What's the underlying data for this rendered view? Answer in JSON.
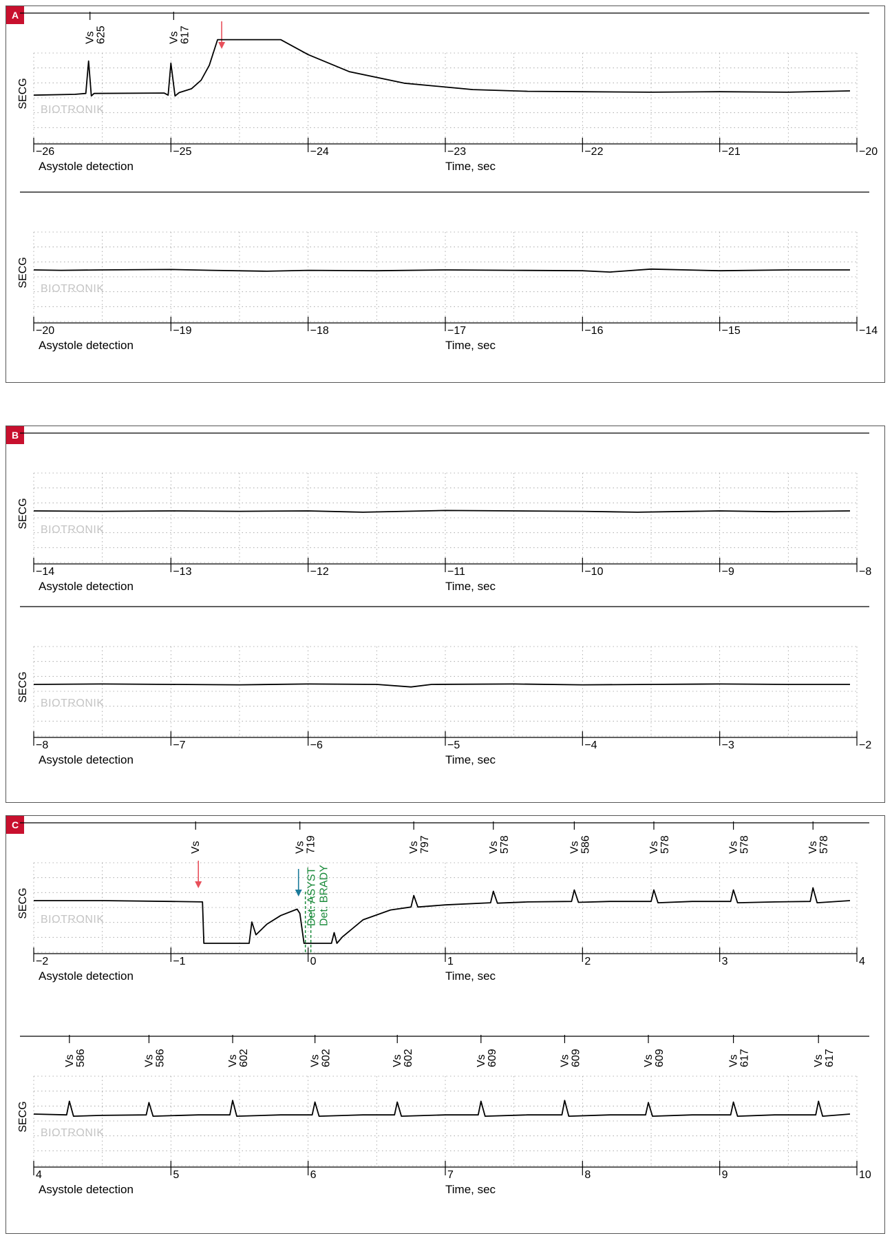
{
  "colors": {
    "label_bg": "#c8102e",
    "trace": "#000000",
    "grid": "#9a9a9a",
    "watermark": "#c4c4c4",
    "marker_red": "#e8505b",
    "marker_blue": "#1a7a9a",
    "marker_green": "#1a8a3a"
  },
  "watermark": "BIOTRONIK",
  "chart_data": [
    {
      "panel": "A",
      "type": "line",
      "ylabel": "SECG",
      "xlabel": "Time, sec",
      "footer_label": "Asystole detection",
      "xlim": [
        -26,
        -20
      ],
      "ticks": [
        "−26",
        "−25",
        "−24",
        "−23",
        "−22",
        "−21",
        "−20"
      ],
      "markers": [
        {
          "x": -25.59,
          "label": "Vs",
          "value": "625"
        },
        {
          "x": -24.98,
          "label": "Vs",
          "value": "617"
        }
      ],
      "arrows": [
        {
          "x": -24.63,
          "color": "red"
        }
      ],
      "green_lines": [],
      "trace": [
        [
          -26,
          -0.1
        ],
        [
          -25.7,
          -0.08
        ],
        [
          -25.62,
          -0.06
        ],
        [
          -25.6,
          0.7
        ],
        [
          -25.58,
          -0.12
        ],
        [
          -25.56,
          -0.06
        ],
        [
          -25.05,
          -0.05
        ],
        [
          -25.02,
          -0.1
        ],
        [
          -25.0,
          0.65
        ],
        [
          -24.97,
          -0.12
        ],
        [
          -24.94,
          -0.04
        ],
        [
          -24.85,
          0.05
        ],
        [
          -24.78,
          0.25
        ],
        [
          -24.72,
          0.6
        ],
        [
          -24.68,
          1.0
        ],
        [
          -24.66,
          1.2
        ],
        [
          -24.2,
          1.2
        ],
        [
          -24.0,
          0.85
        ],
        [
          -23.7,
          0.45
        ],
        [
          -23.3,
          0.18
        ],
        [
          -22.8,
          0.03
        ],
        [
          -22.4,
          -0.01
        ],
        [
          -22.0,
          -0.02
        ],
        [
          -21.5,
          -0.03
        ],
        [
          -21.0,
          -0.02
        ],
        [
          -20.5,
          -0.03
        ],
        [
          -20.05,
          0.0
        ]
      ]
    },
    {
      "panel": "A",
      "type": "line",
      "ylabel": "SECG",
      "xlabel": "Time, sec",
      "footer_label": "Asystole detection",
      "xlim": [
        -20,
        -14
      ],
      "ticks": [
        "−20",
        "−19",
        "−18",
        "−17",
        "−16",
        "−15",
        "−14"
      ],
      "markers": [],
      "arrows": [],
      "green_lines": [],
      "trace": [
        [
          -20,
          0.0
        ],
        [
          -19.8,
          -0.01
        ],
        [
          -19.5,
          0.0
        ],
        [
          -19.0,
          0.01
        ],
        [
          -18.7,
          -0.01
        ],
        [
          -18.3,
          -0.03
        ],
        [
          -18.0,
          -0.01
        ],
        [
          -17.5,
          -0.02
        ],
        [
          -17.0,
          0.0
        ],
        [
          -16.5,
          -0.01
        ],
        [
          -16.0,
          -0.02
        ],
        [
          -15.8,
          -0.05
        ],
        [
          -15.5,
          0.02
        ],
        [
          -15.0,
          -0.02
        ],
        [
          -14.5,
          0.0
        ],
        [
          -14.05,
          0.0
        ]
      ]
    },
    {
      "panel": "B",
      "type": "line",
      "ylabel": "SECG",
      "xlabel": "Time, sec",
      "footer_label": "Asystole detection",
      "xlim": [
        -14,
        -8
      ],
      "ticks": [
        "−14",
        "−13",
        "−12",
        "−11",
        "−10",
        "−9",
        "−8"
      ],
      "markers": [],
      "arrows": [],
      "green_lines": [],
      "trace": [
        [
          -14,
          0.0
        ],
        [
          -13.5,
          -0.01
        ],
        [
          -13.0,
          0.0
        ],
        [
          -12.5,
          -0.01
        ],
        [
          -12.0,
          0.0
        ],
        [
          -11.6,
          -0.03
        ],
        [
          -11.0,
          0.01
        ],
        [
          -10.5,
          0.0
        ],
        [
          -10.0,
          -0.01
        ],
        [
          -9.6,
          -0.03
        ],
        [
          -9.0,
          0.0
        ],
        [
          -8.6,
          -0.02
        ],
        [
          -8.05,
          0.0
        ]
      ]
    },
    {
      "panel": "B",
      "type": "line",
      "ylabel": "SECG",
      "xlabel": "Time, sec",
      "footer_label": "Asystole detection",
      "xlim": [
        -8,
        -2
      ],
      "ticks": [
        "−8",
        "−7",
        "−6",
        "−5",
        "−4",
        "−3",
        "−2"
      ],
      "markers": [],
      "arrows": [],
      "green_lines": [],
      "trace": [
        [
          -8,
          0.0
        ],
        [
          -7.5,
          0.01
        ],
        [
          -7.0,
          0.0
        ],
        [
          -6.5,
          -0.01
        ],
        [
          -6.0,
          0.01
        ],
        [
          -5.5,
          0.0
        ],
        [
          -5.25,
          -0.06
        ],
        [
          -5.1,
          0.0
        ],
        [
          -4.5,
          0.01
        ],
        [
          -4.0,
          -0.01
        ],
        [
          -3.5,
          0.0
        ],
        [
          -3.0,
          0.01
        ],
        [
          -2.5,
          0.0
        ],
        [
          -2.05,
          0.0
        ]
      ]
    },
    {
      "panel": "C",
      "type": "line",
      "ylabel": "SECG",
      "xlabel": "Time, sec",
      "footer_label": "Asystole detection",
      "xlim": [
        -2,
        4
      ],
      "ticks": [
        "−2",
        "−1",
        "0",
        "1",
        "2",
        "3",
        "4"
      ],
      "markers": [
        {
          "x": -0.82,
          "label": "Vs",
          "value": ""
        },
        {
          "x": -0.06,
          "label": "Vs",
          "value": "719"
        },
        {
          "x": 0.77,
          "label": "Vs",
          "value": "797"
        },
        {
          "x": 1.35,
          "label": "Vs",
          "value": "578"
        },
        {
          "x": 1.94,
          "label": "Vs",
          "value": "586"
        },
        {
          "x": 2.52,
          "label": "Vs",
          "value": "578"
        },
        {
          "x": 3.1,
          "label": "Vs",
          "value": "578"
        },
        {
          "x": 3.68,
          "label": "Vs",
          "value": "578"
        }
      ],
      "arrows": [
        {
          "x": -0.8,
          "color": "red"
        },
        {
          "x": -0.07,
          "color": "blue"
        }
      ],
      "green_lines": [
        {
          "x": -0.02,
          "label": "Det. ASYST"
        },
        {
          "x": 0.02,
          "label": "Det. BRADY"
        }
      ],
      "trace": [
        [
          -2,
          0.0
        ],
        [
          -1.5,
          0.0
        ],
        [
          -1.0,
          -0.02
        ],
        [
          -0.77,
          -0.03
        ],
        [
          -0.76,
          -1.0
        ],
        [
          -0.43,
          -1.0
        ],
        [
          -0.41,
          -0.5
        ],
        [
          -0.38,
          -0.8
        ],
        [
          -0.3,
          -0.55
        ],
        [
          -0.2,
          -0.35
        ],
        [
          -0.08,
          -0.2
        ],
        [
          -0.06,
          -0.3
        ],
        [
          -0.03,
          -1.0
        ],
        [
          0.17,
          -1.0
        ],
        [
          0.19,
          -0.75
        ],
        [
          0.21,
          -1.0
        ],
        [
          0.25,
          -0.85
        ],
        [
          0.4,
          -0.45
        ],
        [
          0.6,
          -0.22
        ],
        [
          0.75,
          -0.15
        ],
        [
          0.77,
          0.12
        ],
        [
          0.8,
          -0.15
        ],
        [
          1.0,
          -0.1
        ],
        [
          1.33,
          -0.05
        ],
        [
          1.35,
          0.22
        ],
        [
          1.38,
          -0.06
        ],
        [
          1.6,
          -0.03
        ],
        [
          1.92,
          -0.02
        ],
        [
          1.94,
          0.25
        ],
        [
          1.97,
          -0.04
        ],
        [
          2.2,
          -0.02
        ],
        [
          2.5,
          -0.02
        ],
        [
          2.52,
          0.25
        ],
        [
          2.55,
          -0.05
        ],
        [
          2.8,
          -0.02
        ],
        [
          3.08,
          -0.02
        ],
        [
          3.1,
          0.25
        ],
        [
          3.13,
          -0.05
        ],
        [
          3.4,
          -0.03
        ],
        [
          3.66,
          -0.02
        ],
        [
          3.68,
          0.3
        ],
        [
          3.71,
          -0.05
        ],
        [
          3.95,
          0.0
        ]
      ]
    },
    {
      "panel": "C",
      "type": "line",
      "ylabel": "SECG",
      "xlabel": "Time, sec",
      "footer_label": "Asystole detection",
      "xlim": [
        4,
        10
      ],
      "ticks": [
        "4",
        "5",
        "6",
        "7",
        "8",
        "9",
        "10"
      ],
      "markers": [
        {
          "x": 4.26,
          "label": "Vs",
          "value": "586"
        },
        {
          "x": 4.84,
          "label": "Vs",
          "value": "586"
        },
        {
          "x": 5.45,
          "label": "Vs",
          "value": "602"
        },
        {
          "x": 6.05,
          "label": "Vs",
          "value": "602"
        },
        {
          "x": 6.65,
          "label": "Vs",
          "value": "602"
        },
        {
          "x": 7.26,
          "label": "Vs",
          "value": "609"
        },
        {
          "x": 7.87,
          "label": "Vs",
          "value": "609"
        },
        {
          "x": 8.48,
          "label": "Vs",
          "value": "609"
        },
        {
          "x": 9.1,
          "label": "Vs",
          "value": "617"
        },
        {
          "x": 9.72,
          "label": "Vs",
          "value": "617"
        }
      ],
      "arrows": [],
      "green_lines": [],
      "trace": [
        [
          4,
          0.0
        ],
        [
          4.24,
          -0.02
        ],
        [
          4.26,
          0.3
        ],
        [
          4.29,
          -0.05
        ],
        [
          4.5,
          -0.03
        ],
        [
          4.82,
          -0.02
        ],
        [
          4.84,
          0.27
        ],
        [
          4.87,
          -0.05
        ],
        [
          5.2,
          -0.02
        ],
        [
          5.43,
          -0.02
        ],
        [
          5.45,
          0.32
        ],
        [
          5.48,
          -0.05
        ],
        [
          5.8,
          -0.02
        ],
        [
          6.03,
          -0.02
        ],
        [
          6.05,
          0.28
        ],
        [
          6.08,
          -0.05
        ],
        [
          6.4,
          -0.02
        ],
        [
          6.63,
          -0.02
        ],
        [
          6.65,
          0.28
        ],
        [
          6.68,
          -0.05
        ],
        [
          7.0,
          -0.02
        ],
        [
          7.24,
          -0.02
        ],
        [
          7.26,
          0.3
        ],
        [
          7.29,
          -0.05
        ],
        [
          7.6,
          -0.02
        ],
        [
          7.85,
          -0.02
        ],
        [
          7.87,
          0.32
        ],
        [
          7.9,
          -0.05
        ],
        [
          8.2,
          -0.02
        ],
        [
          8.46,
          -0.02
        ],
        [
          8.48,
          0.27
        ],
        [
          8.51,
          -0.05
        ],
        [
          8.8,
          -0.02
        ],
        [
          9.08,
          -0.02
        ],
        [
          9.1,
          0.28
        ],
        [
          9.13,
          -0.05
        ],
        [
          9.4,
          -0.02
        ],
        [
          9.7,
          -0.02
        ],
        [
          9.72,
          0.3
        ],
        [
          9.75,
          -0.05
        ],
        [
          9.95,
          0.0
        ]
      ]
    }
  ],
  "panels": [
    {
      "label": "A",
      "strips": [
        0,
        1
      ]
    },
    {
      "label": "B",
      "strips": [
        2,
        3
      ]
    },
    {
      "label": "C",
      "strips": [
        4,
        5
      ]
    }
  ]
}
